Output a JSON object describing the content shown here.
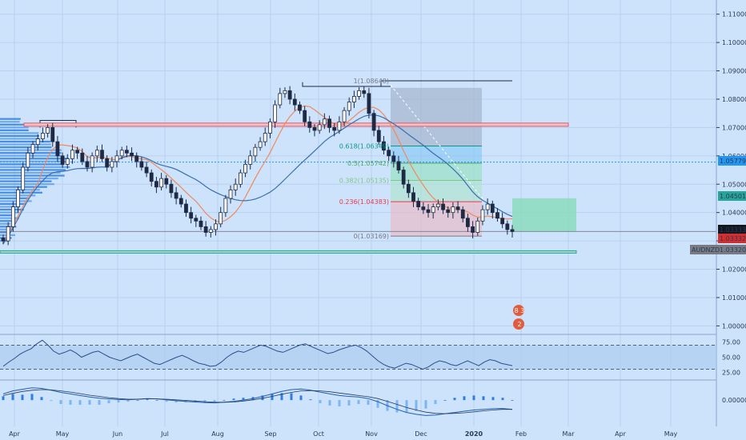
{
  "chart_data": {
    "type": "candlestick",
    "symbol": "AUDNZD",
    "x_axis_labels": [
      "Apr",
      "May",
      "Jun",
      "Jul",
      "Aug",
      "Sep",
      "Oct",
      "Nov",
      "Dec",
      "2020",
      "Feb",
      "Mar",
      "Apr",
      "May"
    ],
    "price_ticks": [
      "1.11000",
      "1.10000",
      "1.09000",
      "1.08000",
      "1.07000",
      "1.06000",
      "1.05000",
      "1.04000",
      "1.03000",
      "1.02000",
      "1.01000",
      "1.00000"
    ],
    "price_range": [
      0.997,
      1.115
    ],
    "candle_closes": [
      1.03,
      1.035,
      1.042,
      1.048,
      1.056,
      1.061,
      1.064,
      1.066,
      1.068,
      1.07,
      1.065,
      1.06,
      1.057,
      1.059,
      1.062,
      1.061,
      1.058,
      1.056,
      1.06,
      1.062,
      1.059,
      1.056,
      1.058,
      1.06,
      1.062,
      1.061,
      1.06,
      1.058,
      1.056,
      1.054,
      1.051,
      1.049,
      1.052,
      1.05,
      1.047,
      1.045,
      1.043,
      1.04,
      1.038,
      1.037,
      1.035,
      1.033,
      1.034,
      1.036,
      1.04,
      1.045,
      1.048,
      1.05,
      1.054,
      1.057,
      1.06,
      1.063,
      1.065,
      1.068,
      1.072,
      1.078,
      1.082,
      1.083,
      1.08,
      1.078,
      1.076,
      1.072,
      1.07,
      1.069,
      1.071,
      1.073,
      1.07,
      1.069,
      1.072,
      1.076,
      1.079,
      1.081,
      1.083,
      1.082,
      1.075,
      1.069,
      1.065,
      1.062,
      1.06,
      1.058,
      1.055,
      1.05,
      1.047,
      1.044,
      1.042,
      1.041,
      1.04,
      1.042,
      1.043,
      1.041,
      1.04,
      1.042,
      1.041,
      1.038,
      1.035,
      1.033,
      1.037,
      1.041,
      1.043,
      1.04,
      1.038,
      1.036,
      1.034,
      1.0333
    ],
    "current_price": "1.03333",
    "price_tags": [
      {
        "value": "1.05779",
        "color": "#2196f3"
      },
      {
        "value": "1.04501",
        "color": "#26a69a"
      },
      {
        "value": "1.03333",
        "color": "#131722"
      },
      {
        "value": "1.03332",
        "color": "#d32f2f"
      },
      {
        "value": "1.03320",
        "color": "#787b86"
      }
    ],
    "symbol_tag": "AUDNZD",
    "fib_levels": [
      {
        "label": "1(1.08648)",
        "price": 1.08648,
        "color": "#787b86"
      },
      {
        "label": "0.618(1.06349)",
        "price": 1.06349,
        "color": "#089981"
      },
      {
        "label": "0.5(1.05742)",
        "price": 1.05742,
        "color": "#4caf50"
      },
      {
        "label": "0.382(1.05135)",
        "price": 1.05135,
        "color": "#81c784"
      },
      {
        "label": "0.236(1.04383)",
        "price": 1.04383,
        "color": "#f23645"
      },
      {
        "label": "0(1.03169)",
        "price": 1.03169,
        "color": "#787b86"
      }
    ],
    "horizontal_levels": [
      1.071,
      1.05779,
      1.03333,
      1.0261
    ],
    "rsi_ticks": [
      "75.00",
      "50.00",
      "25.00"
    ],
    "rsi_range": [
      15,
      85
    ],
    "rsi_band": [
      30,
      70
    ],
    "rsi_values": [
      35,
      42,
      48,
      55,
      60,
      64,
      72,
      78,
      70,
      60,
      55,
      58,
      62,
      57,
      50,
      54,
      58,
      60,
      55,
      50,
      47,
      44,
      48,
      52,
      55,
      50,
      45,
      40,
      38,
      42,
      46,
      50,
      53,
      49,
      44,
      40,
      38,
      35,
      36,
      42,
      50,
      56,
      60,
      58,
      62,
      66,
      70,
      68,
      64,
      60,
      58,
      62,
      66,
      70,
      72,
      68,
      64,
      60,
      56,
      58,
      62,
      65,
      68,
      70,
      66,
      60,
      52,
      44,
      38,
      34,
      32,
      36,
      40,
      38,
      34,
      30,
      34,
      40,
      44,
      42,
      38,
      36,
      40,
      44,
      40,
      36,
      42,
      46,
      44,
      40,
      38,
      36
    ],
    "macd_ticks": [
      "0.00000"
    ],
    "macd_range": [
      -0.008,
      0.006
    ],
    "macd_line": [
      0.002,
      0.003,
      0.0035,
      0.004,
      0.0038,
      0.0032,
      0.0025,
      0.002,
      0.0015,
      0.001,
      0.0006,
      0.0004,
      0.0002,
      0.0001,
      0.0003,
      0.0005,
      0.0004,
      0.0001,
      -0.0002,
      -0.0004,
      -0.0006,
      -0.0008,
      -0.0009,
      -0.0007,
      -0.0004,
      0.0,
      0.0005,
      0.0012,
      0.002,
      0.0028,
      0.0034,
      0.0036,
      0.0032,
      0.0026,
      0.002,
      0.0015,
      0.0012,
      0.001,
      0.0005,
      -0.0005,
      -0.0018,
      -0.003,
      -0.004,
      -0.0046,
      -0.005,
      -0.0048,
      -0.0044,
      -0.004,
      -0.0036,
      -0.0032,
      -0.003,
      -0.0028,
      -0.0027,
      -0.003
    ],
    "signal_line": [
      0.0015,
      0.0022,
      0.0028,
      0.0032,
      0.0034,
      0.0033,
      0.003,
      0.0026,
      0.0021,
      0.0016,
      0.0012,
      0.0008,
      0.0005,
      0.0003,
      0.0003,
      0.0004,
      0.0004,
      0.0003,
      0.0001,
      -0.0001,
      -0.0003,
      -0.0005,
      -0.0007,
      -0.0007,
      -0.0006,
      -0.0003,
      0.0001,
      0.0006,
      0.0012,
      0.0019,
      0.0025,
      0.003,
      0.0031,
      0.003,
      0.0027,
      0.0023,
      0.0019,
      0.0015,
      0.0011,
      0.0005,
      -0.0004,
      -0.0014,
      -0.0024,
      -0.0032,
      -0.0039,
      -0.0043,
      -0.0044,
      -0.0043,
      -0.0041,
      -0.0038,
      -0.0035,
      -0.0032,
      -0.003,
      -0.003
    ],
    "badges": [
      {
        "icon": "earnings-icon",
        "text": "8 3"
      },
      {
        "icon": "dividends-icon",
        "text": "2"
      }
    ],
    "colors": {
      "background": "#cde2fb",
      "bull": "#1e2a44",
      "bear": "#1e2a44",
      "ema": "#f08a5d",
      "sma": "#3a6fb0",
      "resistance": "#e05a6a",
      "support": "#26a69a"
    }
  }
}
